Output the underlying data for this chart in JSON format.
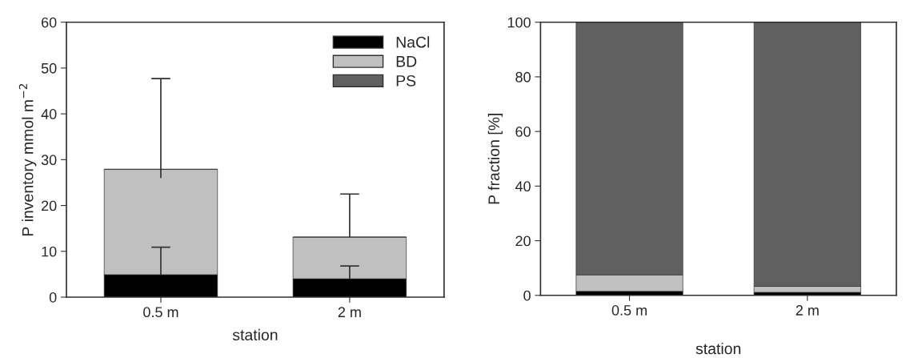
{
  "chart_data": [
    {
      "type": "bar",
      "stacked": true,
      "categories": [
        "0.5 m",
        "2 m"
      ],
      "xlabel": "station",
      "ylabel": "P inventory mmol m$^{−2}$",
      "ylim": [
        0,
        60
      ],
      "yticks": [
        0,
        10,
        20,
        30,
        40,
        50,
        60
      ],
      "grid": false,
      "legend": "top right",
      "series": [
        {
          "name": "NaCl",
          "color": "#000000",
          "values": [
            4.9,
            4.0
          ],
          "errors": [
            [
              4.9,
              10.9
            ],
            [
              4.0,
              6.8
            ]
          ]
        },
        {
          "name": "BD",
          "color": "#c0c0c0",
          "values": [
            23.0,
            9.1
          ],
          "errors": [
            [
              26.0,
              47.7
            ],
            [
              13.1,
              22.5
            ]
          ]
        },
        {
          "name": "PS",
          "color": "#606060",
          "values": [
            null,
            null
          ]
        }
      ]
    },
    {
      "type": "bar",
      "stacked": true,
      "categories": [
        "0.5 m",
        "2 m"
      ],
      "xlabel": "station",
      "ylabel": "P fraction [%]",
      "ylim": [
        0,
        100
      ],
      "yticks": [
        0,
        20,
        40,
        60,
        80,
        100
      ],
      "grid": false,
      "legend": false,
      "series": [
        {
          "color": "#000000",
          "values": [
            1.5,
            1.1
          ]
        },
        {
          "color": "#c0c0c0",
          "values": [
            6.0,
            2.2
          ]
        },
        {
          "color": "#606060",
          "values": [
            92.5,
            96.7
          ]
        }
      ]
    }
  ]
}
